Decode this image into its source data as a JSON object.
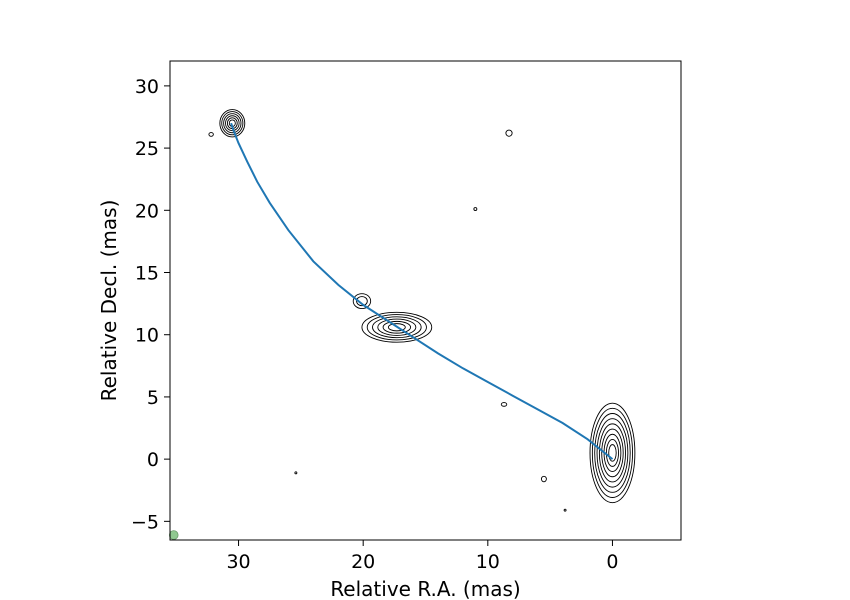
{
  "chart_data": {
    "type": "line",
    "title": "",
    "xlabel": "Relative R.A. (mas)",
    "ylabel": "Relative Decl. (mas)",
    "xlim": [
      35.5,
      -5.5
    ],
    "ylim": [
      -6.5,
      32
    ],
    "x_ticks": [
      30,
      20,
      10,
      0
    ],
    "y_ticks": [
      30,
      25,
      20,
      15,
      10,
      5,
      0,
      -5
    ],
    "grid": false,
    "legend": "none",
    "colors": {
      "curve": "#1f77b4",
      "contour": "#000000",
      "beam": "#90c890"
    },
    "series": [
      {
        "type": "line",
        "x": [
          0.0,
          2.0,
          4.0,
          6.0,
          8.0,
          10.0,
          12.0,
          14.0,
          16.0,
          18.0,
          20.0,
          22.0,
          24.0,
          26.0,
          27.5,
          28.5,
          29.3,
          30.0,
          30.4,
          30.6
        ],
        "y": [
          0.0,
          1.6,
          2.9,
          4.0,
          5.1,
          6.2,
          7.3,
          8.5,
          9.8,
          11.1,
          12.4,
          14.0,
          15.9,
          18.4,
          20.6,
          22.3,
          23.9,
          25.4,
          26.4,
          27.0
        ]
      }
    ],
    "components": [
      {
        "name": "core",
        "x": 0.0,
        "y": 0.5,
        "rx": 1.8,
        "ry": 4.0,
        "levels": 9
      },
      {
        "name": "knot",
        "x": 17.3,
        "y": 10.6,
        "rx": 2.8,
        "ry": 1.2,
        "levels": 6
      },
      {
        "name": "knot",
        "x": 20.1,
        "y": 12.7,
        "rx": 0.7,
        "ry": 0.6,
        "levels": 2
      },
      {
        "name": "knot",
        "x": 30.5,
        "y": 27.0,
        "rx": 1.0,
        "ry": 1.1,
        "levels": 6
      },
      {
        "name": "noise",
        "x": 32.2,
        "y": 26.1,
        "rx": 0.18,
        "ry": 0.15,
        "levels": 1
      },
      {
        "name": "noise",
        "x": 8.3,
        "y": 26.2,
        "rx": 0.25,
        "ry": 0.25,
        "levels": 1
      },
      {
        "name": "noise",
        "x": 11.0,
        "y": 20.1,
        "rx": 0.12,
        "ry": 0.12,
        "levels": 1
      },
      {
        "name": "noise",
        "x": 8.7,
        "y": 4.4,
        "rx": 0.22,
        "ry": 0.15,
        "levels": 1
      },
      {
        "name": "noise",
        "x": 5.5,
        "y": -1.6,
        "rx": 0.2,
        "ry": 0.22,
        "levels": 1
      },
      {
        "name": "noise",
        "x": 25.4,
        "y": -1.1,
        "rx": 0.08,
        "ry": 0.08,
        "levels": 1
      },
      {
        "name": "noise",
        "x": 3.8,
        "y": -4.1,
        "rx": 0.08,
        "ry": 0.08,
        "levels": 1
      }
    ],
    "beam": {
      "x": 35.2,
      "y": -6.1,
      "r": 0.35
    }
  }
}
